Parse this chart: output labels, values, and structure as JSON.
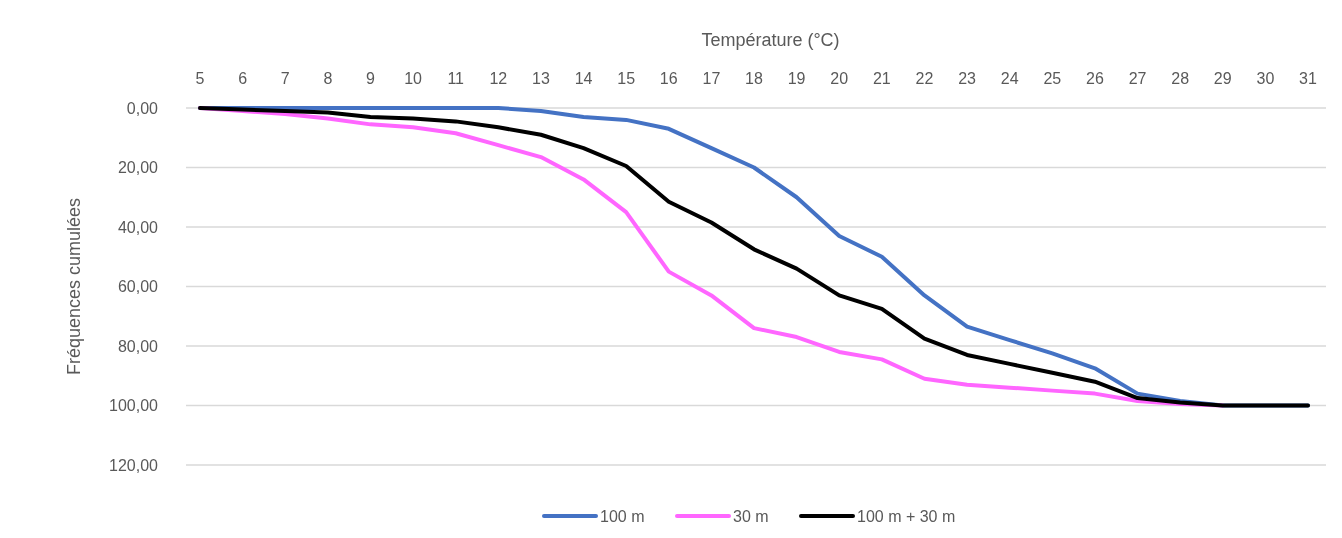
{
  "chart_data": {
    "type": "line",
    "xlabel": "Température (°C)",
    "ylabel": "Fréquences cumulées",
    "categories": [
      "5",
      "6",
      "7",
      "8",
      "9",
      "10",
      "11",
      "12",
      "13",
      "14",
      "15",
      "16",
      "17",
      "18",
      "19",
      "20",
      "21",
      "22",
      "23",
      "24",
      "25",
      "26",
      "27",
      "28",
      "29",
      "30",
      "31"
    ],
    "ylim": [
      120,
      0
    ],
    "yticks": [
      {
        "value": 0,
        "label": "0,00"
      },
      {
        "value": 20,
        "label": "20,00"
      },
      {
        "value": 40,
        "label": "40,00"
      },
      {
        "value": 60,
        "label": "60,00"
      },
      {
        "value": 80,
        "label": "80,00"
      },
      {
        "value": 100,
        "label": "100,00"
      },
      {
        "value": 120,
        "label": "120,00"
      }
    ],
    "grid": "y",
    "legend": "bottom",
    "marker": "none",
    "line_style": "solid",
    "series": [
      {
        "name": "100 m",
        "color": "#4472c4",
        "values": [
          0,
          0,
          0,
          0,
          0,
          0,
          0,
          0,
          1,
          3,
          4,
          7,
          13.5,
          20,
          30,
          43,
          50,
          63,
          73.5,
          78,
          82.5,
          87.5,
          96,
          98.5,
          100,
          100,
          100
        ]
      },
      {
        "name": "30 m",
        "color": "#ff66ff",
        "values": [
          0,
          1,
          2,
          3.5,
          5.5,
          6.5,
          8.5,
          12.5,
          16.5,
          24,
          35,
          55,
          63,
          74,
          77,
          82,
          84.5,
          91,
          93,
          94,
          95,
          96,
          98.5,
          99.5,
          100,
          null,
          null
        ]
      },
      {
        "name": "100 m + 30 m",
        "color": "#000000",
        "values": [
          0,
          0.5,
          1,
          1.5,
          3,
          3.5,
          4.5,
          6.5,
          9,
          13.5,
          19.5,
          31.5,
          38.5,
          47.5,
          54,
          63,
          67.5,
          77.5,
          83,
          86,
          89,
          92,
          97.5,
          99,
          100,
          100,
          100
        ]
      }
    ]
  }
}
